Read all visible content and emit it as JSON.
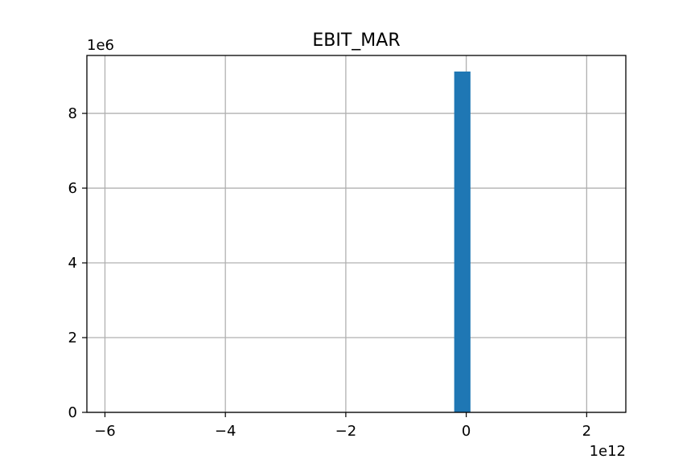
{
  "chart_data": {
    "type": "bar",
    "title": "EBIT_MAR",
    "xlabel": "",
    "ylabel": "",
    "x_offset_label": "1e12",
    "y_offset_label": "1e6",
    "xlim": [
      -6.3,
      2.65
    ],
    "ylim": [
      0,
      9.55
    ],
    "x_ticks": [
      -6,
      -4,
      -2,
      0,
      2
    ],
    "x_tick_labels": [
      "−6",
      "−4",
      "−2",
      "0",
      "2"
    ],
    "y_ticks": [
      0,
      2,
      4,
      6,
      8
    ],
    "y_tick_labels": [
      "0",
      "2",
      "4",
      "6",
      "8"
    ],
    "grid": true,
    "bars": [
      {
        "x_start": -0.2,
        "x_end": 0.07,
        "value": 9.12
      }
    ],
    "colors": {
      "bar": "#1f77b4",
      "grid": "#b0b0b0",
      "axis": "#000000"
    }
  }
}
